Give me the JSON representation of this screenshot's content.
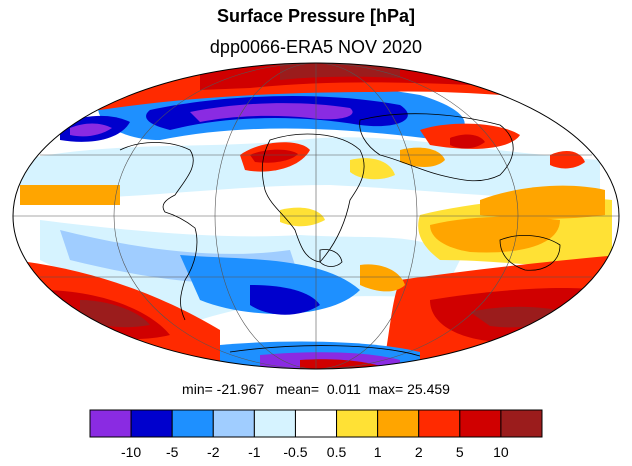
{
  "title": "Surface Pressure [hPa]",
  "subtitle": "dpp0066-ERA5  NOV 2020",
  "stats": {
    "min_label": "min=",
    "min": "-21.967",
    "mean_label": "mean=",
    "mean": "0.011",
    "max_label": "max=",
    "max": "25.459"
  },
  "colorbar": {
    "colors": [
      "#8a2be2",
      "#0000cd",
      "#1e90ff",
      "#a0cdff",
      "#d6f3ff",
      "#ffffff",
      "#ffe135",
      "#ffa500",
      "#ff2a00",
      "#d00000",
      "#9b1c1c"
    ],
    "labels": [
      "-10",
      "-5",
      "-2",
      "-1",
      "-0.5",
      "0.5",
      "1",
      "2",
      "5",
      "10"
    ]
  },
  "map": {
    "projection": "Mollweide",
    "ocean_background": "#ffffff",
    "coastline_color": "#000000"
  }
}
